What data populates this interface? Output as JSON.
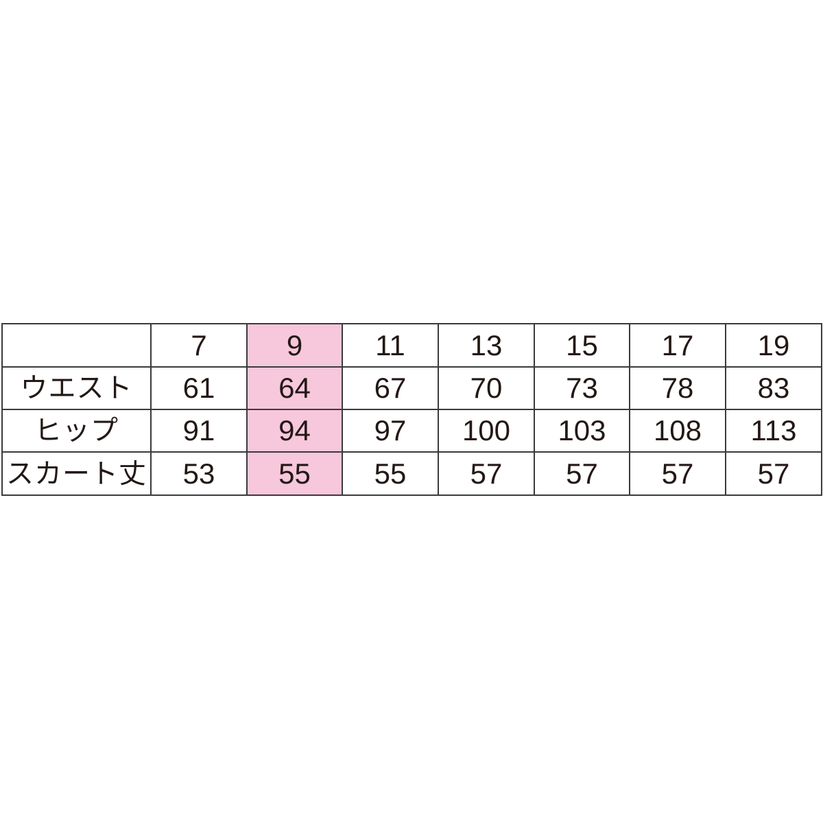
{
  "highlight_color": "#f7c7dc",
  "highlight_size": "9",
  "header": {
    "corner": "",
    "sizes": [
      "7",
      "9",
      "11",
      "13",
      "15",
      "17",
      "19"
    ]
  },
  "rows": [
    {
      "label": "ウエスト",
      "values": [
        "61",
        "64",
        "67",
        "70",
        "73",
        "78",
        "83"
      ]
    },
    {
      "label": "ヒップ",
      "values": [
        "91",
        "94",
        "97",
        "100",
        "103",
        "108",
        "113"
      ]
    },
    {
      "label": "スカート丈",
      "values": [
        "53",
        "55",
        "55",
        "57",
        "57",
        "57",
        "57"
      ]
    }
  ]
}
